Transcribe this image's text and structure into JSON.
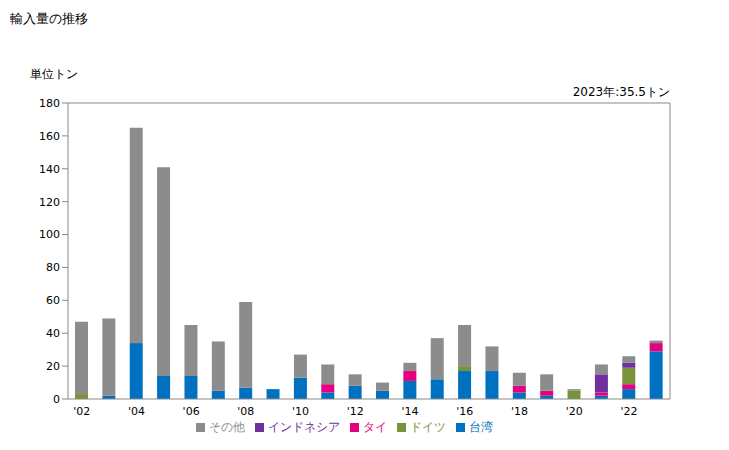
{
  "chart_data": {
    "type": "bar",
    "title": "輸入量の推移",
    "y_label": "単位トン",
    "annotation": "2023年:35.5トン",
    "stacked": true,
    "grid": false,
    "legend": "bottom",
    "categories": [
      "'02",
      null,
      "'04",
      null,
      "'06",
      null,
      "'08",
      null,
      "'10",
      null,
      "'12",
      null,
      "'14",
      null,
      "'16",
      null,
      "'18",
      null,
      "'20",
      null,
      "'22",
      null
    ],
    "ylim": [
      0,
      180
    ],
    "yticks": [
      0,
      20,
      40,
      60,
      80,
      100,
      120,
      140,
      160,
      180
    ],
    "series": [
      {
        "name": "台湾",
        "color": "#0070c0",
        "values": [
          0,
          2,
          34,
          14,
          14,
          5,
          7,
          6,
          13,
          4,
          8,
          5,
          11,
          12,
          17,
          17,
          4,
          2,
          0,
          2,
          6,
          29
        ]
      },
      {
        "name": "タイ",
        "color": "#e4007f",
        "values": [
          0,
          0,
          0,
          0,
          0,
          0,
          0,
          0,
          0,
          5,
          0,
          0,
          6,
          0,
          0,
          0,
          4,
          3,
          0,
          2,
          3,
          5
        ]
      },
      {
        "name": "ドイツ",
        "color": "#77933c",
        "values": [
          3,
          0,
          0,
          0,
          0,
          0,
          0,
          0,
          0,
          0,
          0,
          0,
          0,
          0,
          3,
          0,
          0,
          0,
          5,
          0,
          10,
          0
        ]
      },
      {
        "name": "インドネシア",
        "color": "#7030a0",
        "values": [
          0,
          0,
          0,
          0,
          0,
          0,
          0,
          0,
          0,
          0,
          0,
          0,
          0,
          0,
          0,
          0,
          0,
          0,
          0,
          11,
          3,
          0
        ]
      },
      {
        "name": "その他",
        "color": "#8c8c8c",
        "values": [
          44,
          47,
          131,
          127,
          31,
          30,
          52,
          0,
          14,
          12,
          7,
          5,
          5,
          25,
          25,
          15,
          8,
          10,
          1,
          6,
          4,
          1.5
        ]
      }
    ]
  }
}
